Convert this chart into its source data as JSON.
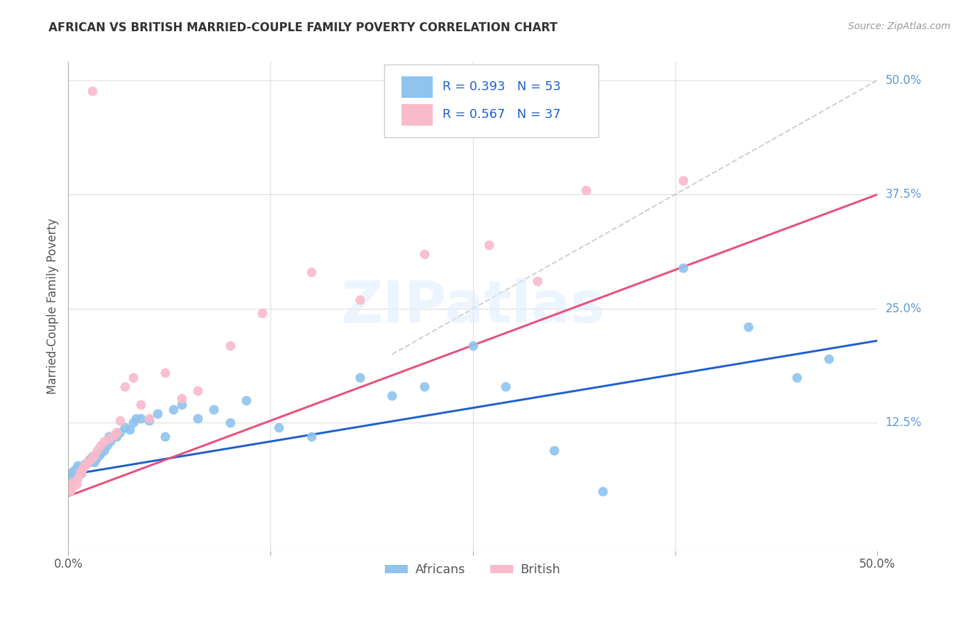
{
  "title": "AFRICAN VS BRITISH MARRIED-COUPLE FAMILY POVERTY CORRELATION CHART",
  "source": "Source: ZipAtlas.com",
  "ylabel": "Married-Couple Family Poverty",
  "xlim": [
    0,
    0.5
  ],
  "ylim": [
    -0.015,
    0.52
  ],
  "xtick_vals": [
    0.0,
    0.125,
    0.25,
    0.375,
    0.5
  ],
  "xtick_labels": [
    "0.0%",
    "",
    "",
    "",
    "50.0%"
  ],
  "ytick_right_labels": [
    "50.0%",
    "37.5%",
    "25.0%",
    "12.5%"
  ],
  "ytick_right_values": [
    0.5,
    0.375,
    0.25,
    0.125
  ],
  "africans_color": "#8EC4EE",
  "british_color": "#F9BACB",
  "trend_african_color": "#2060CC",
  "trend_british_color": "#E8507A",
  "diagonal_color": "#C8C8C8",
  "watermark": "ZIPatlas",
  "africans_x": [
    0.001,
    0.002,
    0.003,
    0.004,
    0.005,
    0.006,
    0.007,
    0.008,
    0.009,
    0.01,
    0.011,
    0.012,
    0.013,
    0.014,
    0.015,
    0.016,
    0.017,
    0.018,
    0.019,
    0.02,
    0.022,
    0.024,
    0.025,
    0.026,
    0.03,
    0.032,
    0.035,
    0.038,
    0.04,
    0.042,
    0.045,
    0.05,
    0.055,
    0.06,
    0.065,
    0.07,
    0.08,
    0.09,
    0.1,
    0.11,
    0.13,
    0.15,
    0.18,
    0.2,
    0.22,
    0.25,
    0.27,
    0.3,
    0.33,
    0.38,
    0.42,
    0.45,
    0.47
  ],
  "africans_y": [
    0.065,
    0.07,
    0.072,
    0.068,
    0.075,
    0.078,
    0.072,
    0.07,
    0.075,
    0.08,
    0.08,
    0.082,
    0.085,
    0.083,
    0.088,
    0.082,
    0.085,
    0.088,
    0.09,
    0.092,
    0.095,
    0.1,
    0.11,
    0.105,
    0.11,
    0.115,
    0.12,
    0.118,
    0.125,
    0.13,
    0.13,
    0.128,
    0.135,
    0.11,
    0.14,
    0.145,
    0.13,
    0.14,
    0.125,
    0.15,
    0.12,
    0.11,
    0.175,
    0.155,
    0.165,
    0.21,
    0.165,
    0.095,
    0.05,
    0.295,
    0.23,
    0.175,
    0.195
  ],
  "british_x": [
    0.001,
    0.002,
    0.003,
    0.005,
    0.006,
    0.007,
    0.008,
    0.009,
    0.01,
    0.011,
    0.012,
    0.014,
    0.015,
    0.016,
    0.018,
    0.02,
    0.022,
    0.025,
    0.028,
    0.03,
    0.032,
    0.035,
    0.04,
    0.045,
    0.05,
    0.06,
    0.07,
    0.08,
    0.1,
    0.12,
    0.15,
    0.18,
    0.22,
    0.26,
    0.29,
    0.32,
    0.38
  ],
  "british_y": [
    0.05,
    0.055,
    0.06,
    0.058,
    0.065,
    0.07,
    0.072,
    0.075,
    0.078,
    0.08,
    0.082,
    0.085,
    0.488,
    0.09,
    0.095,
    0.1,
    0.105,
    0.108,
    0.112,
    0.115,
    0.128,
    0.165,
    0.175,
    0.145,
    0.13,
    0.18,
    0.152,
    0.16,
    0.21,
    0.245,
    0.29,
    0.26,
    0.31,
    0.32,
    0.28,
    0.38,
    0.39
  ],
  "legend_african_R": "R = 0.393",
  "legend_african_N": "N = 53",
  "legend_british_R": "R = 0.567",
  "legend_british_N": "N = 37"
}
